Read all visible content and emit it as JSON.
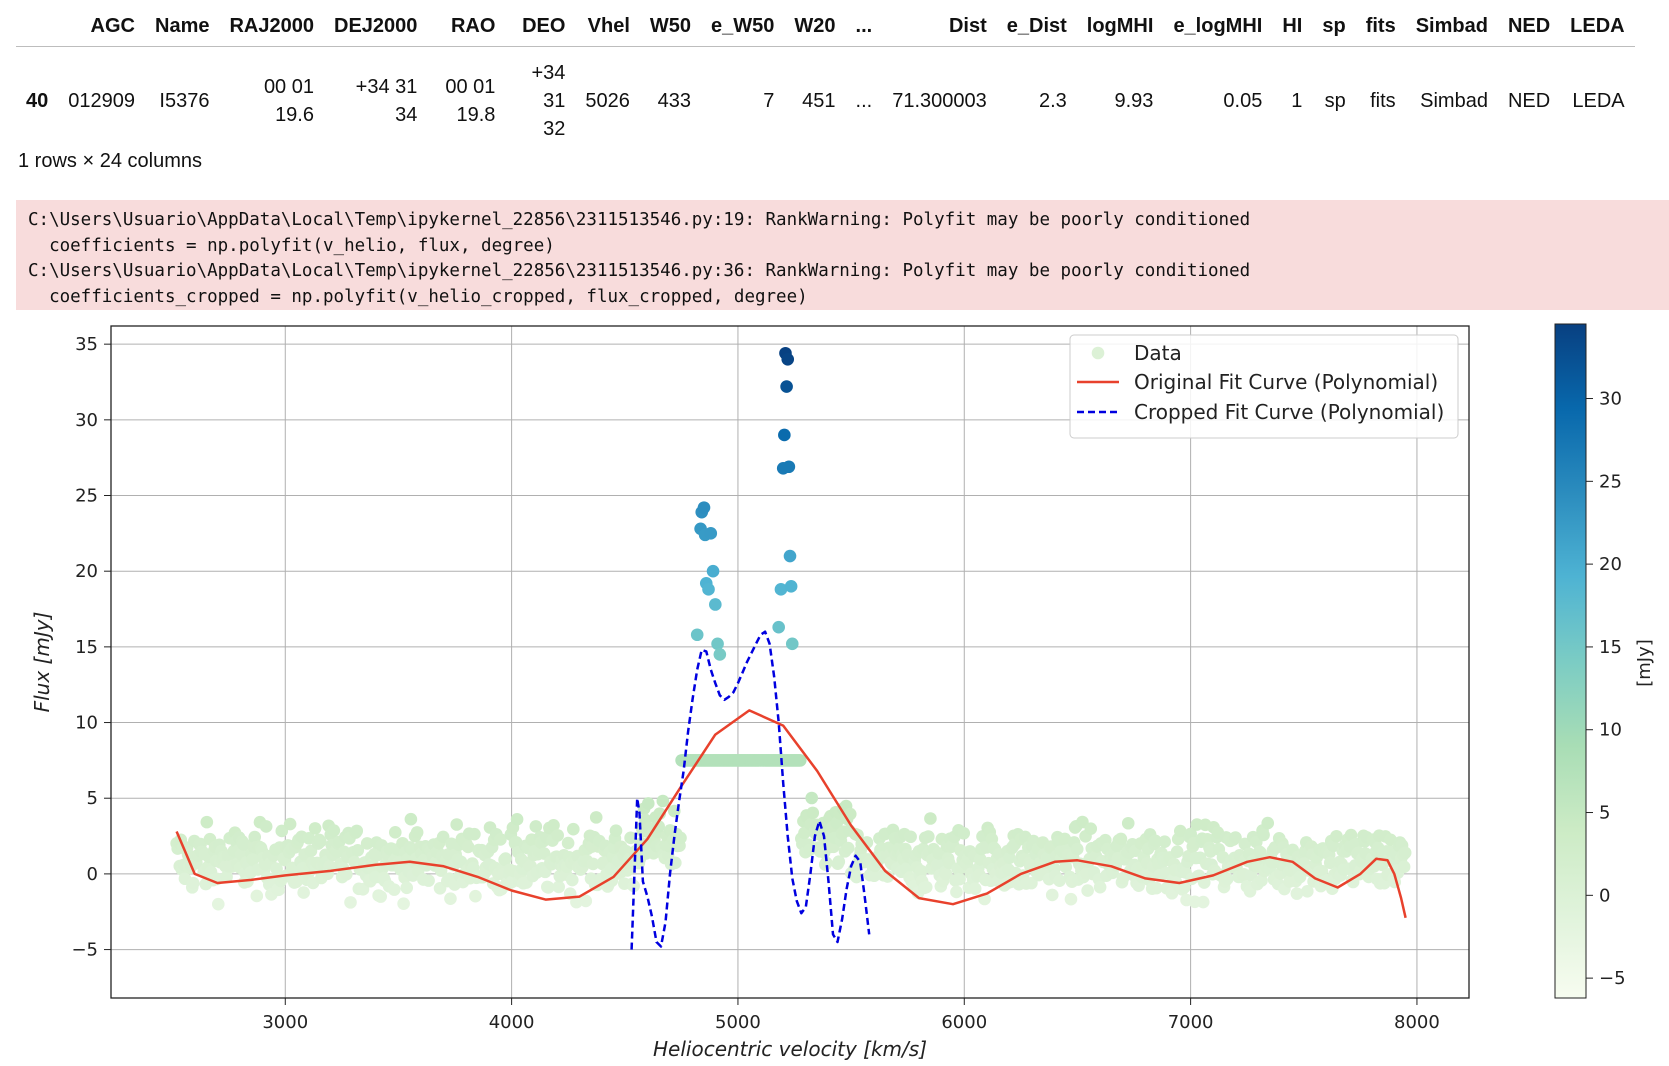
{
  "table": {
    "columns": [
      "",
      "AGC",
      "Name",
      "RAJ2000",
      "DEJ2000",
      "RAO",
      "DEO",
      "Vhel",
      "W50",
      "e_W50",
      "W20",
      "...",
      "Dist",
      "e_Dist",
      "logMHI",
      "e_logMHI",
      "HI",
      "sp",
      "fits",
      "Simbad",
      "NED",
      "LEDA"
    ],
    "rows": [
      [
        "40",
        "012909",
        "I5376",
        "00 01 19.6",
        "+34 31 34",
        "00 01 19.8",
        "+34 31 32",
        "5026",
        "433",
        "7",
        "451",
        "...",
        "71.300003",
        "2.3",
        "9.93",
        "0.05",
        "1",
        "sp",
        "fits",
        "Simbad",
        "NED",
        "LEDA"
      ]
    ],
    "shape_text": "1 rows × 24 columns"
  },
  "warning": {
    "lines": [
      "C:\\Users\\Usuario\\AppData\\Local\\Temp\\ipykernel_22856\\2311513546.py:19: RankWarning: Polyfit may be poorly conditioned",
      "  coefficients = np.polyfit(v_helio, flux, degree)",
      "C:\\Users\\Usuario\\AppData\\Local\\Temp\\ipykernel_22856\\2311513546.py:36: RankWarning: Polyfit may be poorly conditioned",
      "  coefficients_cropped = np.polyfit(v_helio_cropped, flux_cropped, degree)"
    ]
  },
  "chart_data": {
    "type": "scatter",
    "xlabel": "Heliocentric velocity [km/s]",
    "ylabel": "Flux [mJy]",
    "xlim": [
      2230,
      8230
    ],
    "ylim": [
      -8.2,
      36.2
    ],
    "xticks": [
      3000,
      4000,
      5000,
      6000,
      7000,
      8000
    ],
    "yticks": [
      -5,
      0,
      5,
      10,
      15,
      20,
      25,
      30,
      35
    ],
    "grid": true,
    "legend_position": "top-right",
    "legend": [
      "Data",
      "Original Fit Curve (Polynomial)",
      "Cropped Fit Curve (Polynomial)"
    ],
    "colorbar": {
      "label": "[mJy]",
      "range": [
        -6.2,
        34.5
      ],
      "ticks": [
        -5,
        0,
        5,
        10,
        15,
        20,
        25,
        30
      ],
      "colormap": [
        "#f7fcf0",
        "#e0f3db",
        "#ccebc5",
        "#a8ddb5",
        "#7bccc4",
        "#4eb3d3",
        "#2b8cbe",
        "#0868ac",
        "#084081"
      ]
    },
    "series": [
      {
        "name": "Data",
        "kind": "scatter",
        "x_range": [
          2520,
          7950
        ],
        "baseline_noise": [
          -6,
          7.5
        ],
        "peak_points": {
          "x": [
            4820,
            4835,
            4840,
            4850,
            4855,
            4860,
            4870,
            4880,
            4890,
            4900,
            4910,
            4920,
            5180,
            5190,
            5200,
            5205,
            5210,
            5215,
            5220,
            5225,
            5230,
            5235,
            5240
          ],
          "y": [
            15.8,
            22.8,
            23.9,
            24.2,
            22.4,
            19.2,
            18.8,
            22.5,
            20,
            17.8,
            15.2,
            14.5,
            16.3,
            18.8,
            26.8,
            29,
            34.4,
            32.2,
            34,
            26.9,
            21,
            19,
            15.2
          ]
        }
      },
      {
        "name": "Original Fit Curve (Polynomial)",
        "kind": "line",
        "color": "#e8412c",
        "x": [
          2520,
          2600,
          2700,
          2850,
          3000,
          3200,
          3400,
          3550,
          3700,
          3850,
          4000,
          4150,
          4300,
          4450,
          4600,
          4750,
          4900,
          5050,
          5200,
          5350,
          5500,
          5650,
          5800,
          5950,
          6100,
          6250,
          6400,
          6500,
          6650,
          6800,
          6950,
          7100,
          7250,
          7350,
          7450,
          7550,
          7650,
          7750,
          7820,
          7870,
          7900,
          7930,
          7950
        ],
        "y": [
          2.8,
          0,
          -0.6,
          -0.4,
          -0.1,
          0.2,
          0.6,
          0.8,
          0.5,
          -0.2,
          -1.1,
          -1.7,
          -1.5,
          -0.2,
          2.3,
          5.8,
          9.2,
          10.8,
          9.8,
          6.8,
          3.2,
          0.2,
          -1.6,
          -2,
          -1.3,
          0,
          0.8,
          0.9,
          0.5,
          -0.3,
          -0.6,
          -0.1,
          0.8,
          1.1,
          0.8,
          -0.3,
          -0.9,
          0,
          1,
          0.9,
          0,
          -1.6,
          -2.9
        ]
      },
      {
        "name": "Cropped Fit Curve (Polynomial)",
        "kind": "line",
        "color": "#0000e0",
        "x": [
          4530,
          4545,
          4555,
          4565,
          4580,
          4600,
          4620,
          4640,
          4660,
          4680,
          4700,
          4720,
          4740,
          4760,
          4780,
          4800,
          4820,
          4840,
          4860,
          4880,
          4900,
          4920,
          4940,
          4960,
          4980,
          5000,
          5020,
          5040,
          5060,
          5080,
          5100,
          5120,
          5140,
          5160,
          5180,
          5200,
          5220,
          5240,
          5260,
          5280,
          5300,
          5320,
          5340,
          5360,
          5380,
          5400,
          5420,
          5440,
          5460,
          5480,
          5500,
          5520,
          5540,
          5560,
          5580
        ],
        "y": [
          -5,
          1,
          5,
          4,
          -0.5,
          -1.5,
          -2.8,
          -4.5,
          -4.8,
          -3.2,
          0,
          2.6,
          4.8,
          6.8,
          9.4,
          11.6,
          13.5,
          14.8,
          14.7,
          13.5,
          12.6,
          11.8,
          11.5,
          11.7,
          12,
          12.6,
          13.3,
          14,
          14.6,
          15.2,
          15.8,
          16,
          15.2,
          13,
          10,
          6,
          2.5,
          -0.3,
          -1.8,
          -2.6,
          -2.2,
          0,
          2.5,
          3.5,
          2.5,
          -0.5,
          -4,
          -4.5,
          -3,
          -1,
          0.5,
          1.2,
          0.8,
          -1.5,
          -4
        ]
      }
    ]
  }
}
